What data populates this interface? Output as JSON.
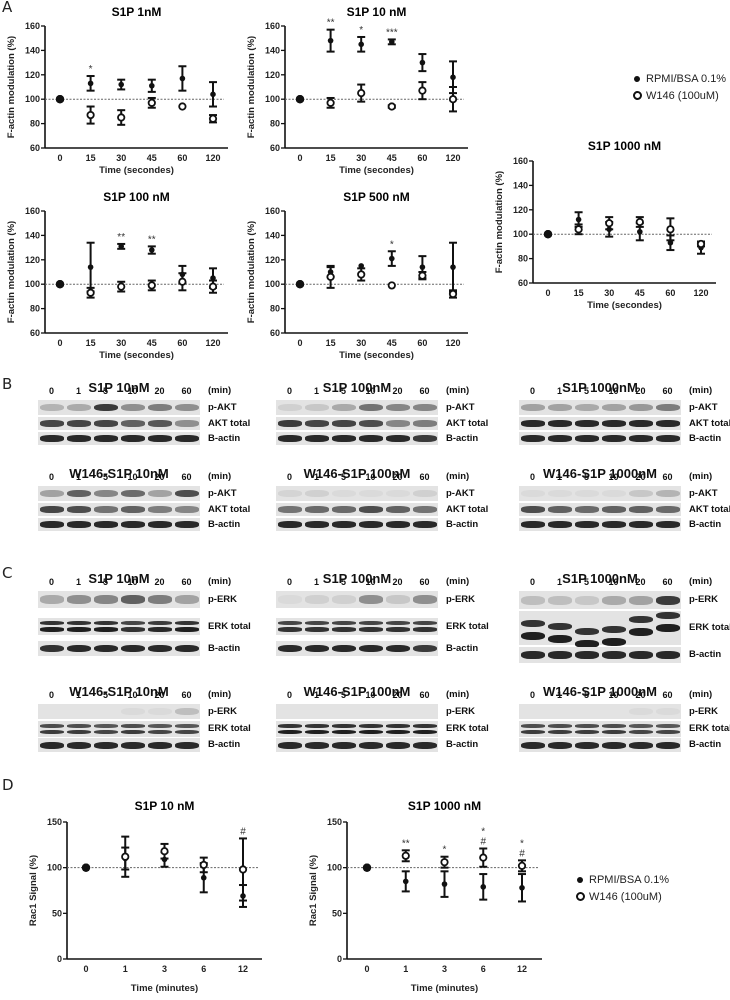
{
  "panels": {
    "A": {
      "letter": "A"
    },
    "B": {
      "letter": "B"
    },
    "C": {
      "letter": "C"
    },
    "D": {
      "letter": "D"
    }
  },
  "legend": {
    "series_1": "RPMI/BSA 0.1%",
    "series_2": "W146 (100uM)"
  },
  "chart_data": [
    {
      "id": "A1",
      "type": "scatter",
      "title": "S1P 1nM",
      "xlabel": "Time (secondes)",
      "ylabel": "F-actin modulation (%)",
      "categories": [
        "0",
        "15",
        "30",
        "45",
        "60",
        "120"
      ],
      "ylim": [
        60,
        160
      ],
      "yticks": [
        60,
        80,
        100,
        120,
        140,
        160
      ],
      "reference_line": 100,
      "series": [
        {
          "name": "RPMI/BSA 0.1%",
          "marker": "filled",
          "values": [
            100,
            113,
            112,
            111,
            117,
            104
          ],
          "err": [
            0,
            6,
            4,
            5,
            10,
            10
          ]
        },
        {
          "name": "W146 (100uM)",
          "marker": "open",
          "values": [
            100,
            87,
            85,
            97,
            94,
            84
          ],
          "err": [
            0,
            7,
            6,
            4,
            0,
            3
          ]
        }
      ],
      "annotations": [
        {
          "x": "15",
          "text": "*"
        }
      ]
    },
    {
      "id": "A2",
      "type": "scatter",
      "title": "S1P 10 nM",
      "xlabel": "Time (secondes)",
      "ylabel": "F-actin modulation (%)",
      "categories": [
        "0",
        "15",
        "30",
        "45",
        "60",
        "120"
      ],
      "ylim": [
        60,
        160
      ],
      "yticks": [
        60,
        80,
        100,
        120,
        140,
        160
      ],
      "reference_line": 100,
      "series": [
        {
          "name": "RPMI/BSA 0.1%",
          "marker": "filled",
          "values": [
            100,
            148,
            145,
            147,
            130,
            118
          ],
          "err": [
            0,
            9,
            6,
            2,
            7,
            13
          ]
        },
        {
          "name": "W146 (100uM)",
          "marker": "open",
          "values": [
            100,
            97,
            105,
            94,
            107,
            100
          ],
          "err": [
            0,
            4,
            7,
            1,
            7,
            10
          ]
        }
      ],
      "annotations": [
        {
          "x": "15",
          "text": "**"
        },
        {
          "x": "30",
          "text": "*"
        },
        {
          "x": "45",
          "text": "***"
        }
      ]
    },
    {
      "id": "A3",
      "type": "scatter",
      "title": "S1P 100 nM",
      "xlabel": "Time (secondes)",
      "ylabel": "F-actin modulation (%)",
      "categories": [
        "0",
        "15",
        "30",
        "45",
        "60",
        "120"
      ],
      "ylim": [
        60,
        160
      ],
      "yticks": [
        60,
        80,
        100,
        120,
        140,
        160
      ],
      "reference_line": 100,
      "series": [
        {
          "name": "RPMI/BSA 0.1%",
          "marker": "filled",
          "values": [
            100,
            114,
            131,
            128,
            108,
            105
          ],
          "err": [
            0,
            20,
            2,
            3,
            7,
            8
          ]
        },
        {
          "name": "W146 (100uM)",
          "marker": "open",
          "values": [
            100,
            93,
            98,
            99,
            102,
            98
          ],
          "err": [
            0,
            4,
            4,
            4,
            7,
            5
          ]
        }
      ],
      "annotations": [
        {
          "x": "30",
          "text": "**"
        },
        {
          "x": "45",
          "text": "**"
        }
      ]
    },
    {
      "id": "A4",
      "type": "scatter",
      "title": "S1P 500 nM",
      "xlabel": "Time (secondes)",
      "ylabel": "F-actin modulation (%)",
      "categories": [
        "0",
        "15",
        "30",
        "45",
        "60",
        "120"
      ],
      "ylim": [
        60,
        160
      ],
      "yticks": [
        60,
        80,
        100,
        120,
        140,
        160
      ],
      "reference_line": 100,
      "series": [
        {
          "name": "RPMI/BSA 0.1%",
          "marker": "filled",
          "values": [
            100,
            110,
            115,
            121,
            114,
            114
          ],
          "err": [
            0,
            4,
            0,
            6,
            9,
            20
          ]
        },
        {
          "name": "W146 (100uM)",
          "marker": "open",
          "values": [
            100,
            106,
            108,
            99,
            107,
            92
          ],
          "err": [
            0,
            9,
            5,
            0,
            3,
            3
          ]
        }
      ],
      "annotations": [
        {
          "x": "45",
          "text": "*"
        }
      ]
    },
    {
      "id": "A5",
      "type": "scatter",
      "title": "S1P 1000 nM",
      "xlabel": "Time (secondes)",
      "ylabel": "F-actin modulation (%)",
      "categories": [
        "0",
        "15",
        "30",
        "45",
        "60",
        "120"
      ],
      "ylim": [
        60,
        160
      ],
      "yticks": [
        60,
        80,
        100,
        120,
        140,
        160
      ],
      "reference_line": 100,
      "series": [
        {
          "name": "RPMI/BSA 0.1%",
          "marker": "filled",
          "values": [
            100,
            112,
            104,
            102,
            93,
            89
          ],
          "err": [
            0,
            6,
            6,
            7,
            6,
            5
          ]
        },
        {
          "name": "W146 (100uM)",
          "marker": "open",
          "values": [
            100,
            104,
            109,
            110,
            104,
            92
          ],
          "err": [
            0,
            4,
            5,
            4,
            9,
            2
          ]
        }
      ],
      "annotations": []
    },
    {
      "id": "D1",
      "type": "scatter",
      "title": "S1P 10 nM",
      "xlabel": "Time (minutes)",
      "ylabel": "Rac1 Signal (%)",
      "categories": [
        "0",
        "1",
        "3",
        "6",
        "12"
      ],
      "ylim": [
        0,
        150
      ],
      "yticks": [
        0,
        50,
        100,
        150
      ],
      "reference_line": 100,
      "series": [
        {
          "name": "RPMI/BSA 0.1%",
          "marker": "filled",
          "values": [
            100,
            110,
            109,
            89,
            69
          ],
          "err": [
            0,
            12,
            8,
            16,
            12
          ]
        },
        {
          "name": "W146 (100uM)",
          "marker": "open",
          "values": [
            100,
            112,
            118,
            103,
            98
          ],
          "err": [
            0,
            22,
            8,
            8,
            34
          ]
        }
      ],
      "annotations": [
        {
          "x": "12",
          "text": "#"
        }
      ]
    },
    {
      "id": "D2",
      "type": "scatter",
      "title": "S1P 1000 nM",
      "xlabel": "Time (minutes)",
      "ylabel": "Rac1 Signal (%)",
      "categories": [
        "0",
        "1",
        "3",
        "6",
        "12"
      ],
      "ylim": [
        0,
        150
      ],
      "yticks": [
        0,
        50,
        100,
        150
      ],
      "reference_line": 100,
      "series": [
        {
          "name": "RPMI/BSA 0.1%",
          "marker": "filled",
          "values": [
            100,
            85,
            82,
            79,
            78
          ],
          "err": [
            0,
            11,
            14,
            14,
            15
          ]
        },
        {
          "name": "W146 (100uM)",
          "marker": "open",
          "values": [
            100,
            113,
            106,
            111,
            102
          ],
          "err": [
            0,
            6,
            6,
            10,
            6
          ]
        }
      ],
      "annotations": [
        {
          "x": "1",
          "text": "**"
        },
        {
          "x": "3",
          "text": "*"
        },
        {
          "x": "6",
          "text": "*\n#"
        },
        {
          "x": "12",
          "text": "*\n#"
        }
      ]
    }
  ],
  "blots": {
    "lanes": [
      "0",
      "1",
      "5",
      "10",
      "20",
      "60"
    ],
    "time_unit": "(min)",
    "akt": [
      {
        "title": "S1P 10nM",
        "rows": [
          "p-AKT",
          "AKT total",
          "B-actin"
        ]
      },
      {
        "title": "S1P 100nM",
        "rows": [
          "p-AKT",
          "AKT total",
          "B-actin"
        ]
      },
      {
        "title": "S1P 1000nM",
        "rows": [
          "p-AKT",
          "AKT total",
          "B-actin"
        ]
      },
      {
        "title": "W146-S1P 10nM",
        "rows": [
          "p-AKT",
          "AKT total",
          "B-actin"
        ]
      },
      {
        "title": "W146-S1P 100nM",
        "rows": [
          "p-AKT",
          "AKT total",
          "B-actin"
        ]
      },
      {
        "title": "W146-S1P 1000nM",
        "rows": [
          "p-AKT",
          "AKT total",
          "B-actin"
        ]
      }
    ],
    "erk": [
      {
        "title": "S1P 10nM",
        "rows": [
          "p-ERK",
          "ERK total",
          "B-actin"
        ]
      },
      {
        "title": "S1P 100nM",
        "rows": [
          "p-ERK",
          "ERK total",
          "B-actin"
        ]
      },
      {
        "title": "S1P 1000nM",
        "rows": [
          "p-ERK",
          "ERK total",
          "B-actin"
        ]
      },
      {
        "title": "W146-S1P 10nM",
        "rows": [
          "p-ERK",
          "ERK total",
          "B-actin"
        ]
      },
      {
        "title": "W146-S1P 100nM",
        "rows": [
          "p-ERK",
          "ERK total",
          "B-actin"
        ]
      },
      {
        "title": "W146-S1P 1000nM",
        "rows": [
          "p-ERK",
          "ERK total",
          "B-actin"
        ]
      }
    ]
  }
}
